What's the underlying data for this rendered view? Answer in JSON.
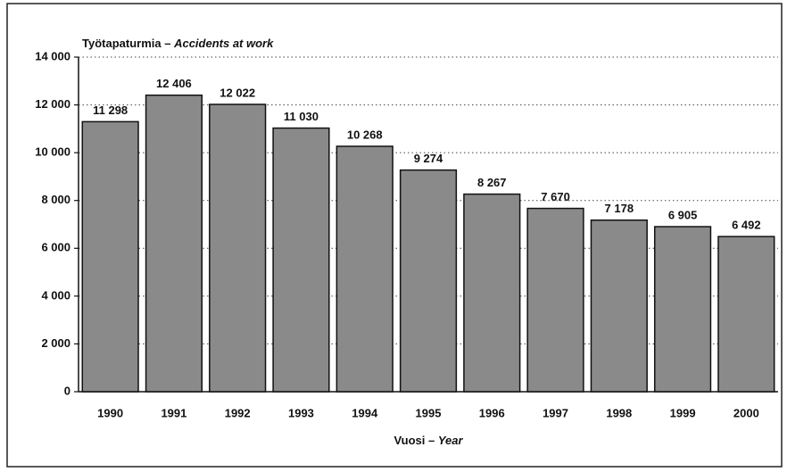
{
  "chart_data": {
    "type": "bar",
    "title_fi": "Työtapaturmia –",
    "title_en": "Accidents at work",
    "xlabel_fi": "Vuosi –",
    "xlabel_en": "Year",
    "categories": [
      "1990",
      "1991",
      "1992",
      "1993",
      "1994",
      "1995",
      "1996",
      "1997",
      "1998",
      "1999",
      "2000"
    ],
    "values": [
      11298,
      12406,
      12022,
      11030,
      10268,
      9274,
      8267,
      7670,
      7178,
      6905,
      6492
    ],
    "value_labels": [
      "11 298",
      "12 406",
      "12 022",
      "11 030",
      "10 268",
      "9 274",
      "8 267",
      "7 670",
      "7 178",
      "6 905",
      "6 492"
    ],
    "color": "#8a8a8a",
    "ylim": [
      0,
      14000
    ],
    "yticks": [
      0,
      {
        "value": 2000,
        "label": "2 000"
      },
      {
        "value": 4000,
        "label": "4 000"
      },
      {
        "value": 6000,
        "label": "6 000"
      },
      {
        "value": 8000,
        "label": "8 000"
      },
      {
        "value": 10000,
        "label": "10 000"
      },
      {
        "value": 12000,
        "label": "12 000"
      },
      {
        "value": 14000,
        "label": "14 000"
      }
    ],
    "grid": true
  }
}
